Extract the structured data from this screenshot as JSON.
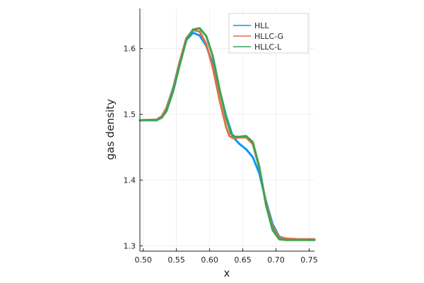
{
  "chart_data": {
    "type": "line",
    "title": "",
    "xlabel": "x",
    "ylabel": "gas density",
    "xlim": [
      0.495,
      0.758
    ],
    "ylim": [
      1.292,
      1.661
    ],
    "xticks": [
      0.5,
      0.55,
      0.6,
      0.65,
      0.7,
      0.75
    ],
    "xtick_labels": [
      "0.50",
      "0.55",
      "0.60",
      "0.65",
      "0.70",
      "0.75"
    ],
    "yticks": [
      1.3,
      1.4,
      1.5,
      1.6
    ],
    "ytick_labels": [
      "1.3",
      "1.4",
      "1.5",
      "1.6"
    ],
    "grid": true,
    "legend_position": "top-right",
    "series": [
      {
        "name": "HLL",
        "color": "#009AFA",
        "x": [
          0.495,
          0.52,
          0.528,
          0.535,
          0.545,
          0.555,
          0.565,
          0.575,
          0.585,
          0.595,
          0.605,
          0.615,
          0.625,
          0.635,
          0.645,
          0.655,
          0.665,
          0.675,
          0.685,
          0.695,
          0.705,
          0.715,
          0.735,
          0.758
        ],
        "y": [
          1.491,
          1.492,
          1.497,
          1.51,
          1.54,
          1.58,
          1.613,
          1.624,
          1.62,
          1.604,
          1.577,
          1.537,
          1.497,
          1.466,
          1.455,
          1.447,
          1.435,
          1.41,
          1.368,
          1.333,
          1.314,
          1.311,
          1.31,
          1.31
        ]
      },
      {
        "name": "HLLC-G",
        "color": "#E36F47",
        "x": [
          0.495,
          0.52,
          0.528,
          0.535,
          0.545,
          0.555,
          0.565,
          0.575,
          0.585,
          0.595,
          0.605,
          0.615,
          0.625,
          0.63,
          0.635,
          0.645,
          0.655,
          0.665,
          0.675,
          0.685,
          0.695,
          0.705,
          0.715,
          0.735,
          0.758
        ],
        "y": [
          1.491,
          1.492,
          1.497,
          1.509,
          1.538,
          1.58,
          1.616,
          1.628,
          1.626,
          1.607,
          1.57,
          1.522,
          1.48,
          1.467,
          1.464,
          1.465,
          1.465,
          1.455,
          1.418,
          1.365,
          1.329,
          1.313,
          1.311,
          1.31,
          1.31
        ]
      },
      {
        "name": "HLLC-L",
        "color": "#3EA44E",
        "x": [
          0.495,
          0.52,
          0.528,
          0.535,
          0.545,
          0.555,
          0.565,
          0.575,
          0.585,
          0.595,
          0.605,
          0.615,
          0.625,
          0.632,
          0.638,
          0.645,
          0.655,
          0.665,
          0.675,
          0.685,
          0.695,
          0.705,
          0.715,
          0.735,
          0.758
        ],
        "y": [
          1.491,
          1.491,
          1.495,
          1.505,
          1.535,
          1.575,
          1.613,
          1.629,
          1.631,
          1.619,
          1.588,
          1.538,
          1.494,
          1.471,
          1.466,
          1.466,
          1.467,
          1.458,
          1.42,
          1.362,
          1.324,
          1.31,
          1.309,
          1.309,
          1.309
        ]
      }
    ]
  }
}
